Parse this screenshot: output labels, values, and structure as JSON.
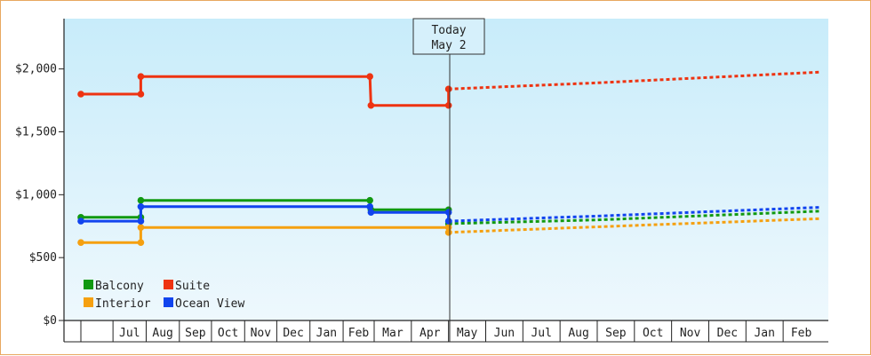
{
  "chart_data": {
    "type": "line",
    "title": "",
    "xlabel": "",
    "ylabel": "",
    "ylim": [
      0,
      2400
    ],
    "y_ticks": [
      {
        "value": 0,
        "label": "$0"
      },
      {
        "value": 500,
        "label": "$500"
      },
      {
        "value": 1000,
        "label": "$1,000"
      },
      {
        "value": 1500,
        "label": "$1,500"
      },
      {
        "value": 2000,
        "label": "$2,000"
      }
    ],
    "x_axis": {
      "start": "2023-06-01",
      "end": "2024-03-01",
      "months": [
        {
          "date": "2023-06-01",
          "label": ""
        },
        {
          "date": "2023-07-01",
          "label": "Jul"
        },
        {
          "date": "2023-08-01",
          "label": "Aug"
        },
        {
          "date": "2023-09-01",
          "label": "Sep"
        },
        {
          "date": "2023-10-01",
          "label": "Oct"
        },
        {
          "date": "2023-11-01",
          "label": "Nov"
        },
        {
          "date": "2023-12-01",
          "label": "Dec"
        },
        {
          "date": "2024-01-01",
          "label": "Jan"
        },
        {
          "date": "2024-02-01",
          "label": "Feb"
        },
        {
          "date": "2024-03-01",
          "label": "Mar"
        },
        {
          "date": "2024-04-01",
          "label": "Apr"
        },
        {
          "date": "2024-05-01",
          "label": "May"
        },
        {
          "date": "2024-06-01",
          "label": "Jun"
        },
        {
          "date": "2024-07-01",
          "label": "Jul"
        },
        {
          "date": "2024-08-01",
          "label": "Aug"
        },
        {
          "date": "2024-09-01",
          "label": "Sep"
        },
        {
          "date": "2024-10-01",
          "label": "Oct"
        },
        {
          "date": "2024-11-01",
          "label": "Nov"
        },
        {
          "date": "2024-12-01",
          "label": "Dec"
        },
        {
          "date": "2025-01-01",
          "label": "Jan"
        },
        {
          "date": "2025-02-01",
          "label": "Feb"
        }
      ]
    },
    "today": {
      "date": "2024-05-02",
      "label_line1": "Today",
      "label_line2": "May 2"
    },
    "grid": false,
    "legend_position": "bottom-left",
    "colors": {
      "background_top": "#c8ecfa",
      "background_bottom": "#eef8fd",
      "frame": "#e8a860"
    },
    "series": [
      {
        "name": "Balcony",
        "color": "#119911",
        "history": [
          {
            "date": "2023-06-01",
            "value": 820
          },
          {
            "date": "2023-07-27",
            "value": 820
          },
          {
            "date": "2023-07-27",
            "value": 955
          },
          {
            "date": "2024-02-26",
            "value": 955
          },
          {
            "date": "2024-02-27",
            "value": 880
          },
          {
            "date": "2024-05-01",
            "value": 880
          },
          {
            "date": "2024-05-01",
            "value": 770
          }
        ],
        "forecast": [
          {
            "date": "2024-05-01",
            "value": 770
          },
          {
            "date": "2024-09-01",
            "value": 800
          },
          {
            "date": "2025-03-01",
            "value": 870
          }
        ]
      },
      {
        "name": "Suite",
        "color": "#ee3311",
        "history": [
          {
            "date": "2023-06-01",
            "value": 1800
          },
          {
            "date": "2023-07-27",
            "value": 1800
          },
          {
            "date": "2023-07-27",
            "value": 1940
          },
          {
            "date": "2024-02-26",
            "value": 1940
          },
          {
            "date": "2024-02-27",
            "value": 1710
          },
          {
            "date": "2024-05-01",
            "value": 1710
          },
          {
            "date": "2024-05-01",
            "value": 1840
          }
        ],
        "forecast": [
          {
            "date": "2024-05-01",
            "value": 1840
          },
          {
            "date": "2024-09-01",
            "value": 1890
          },
          {
            "date": "2025-03-01",
            "value": 1975
          }
        ]
      },
      {
        "name": "Interior",
        "color": "#f5a010",
        "history": [
          {
            "date": "2023-06-01",
            "value": 620
          },
          {
            "date": "2023-07-27",
            "value": 620
          },
          {
            "date": "2023-07-27",
            "value": 740
          },
          {
            "date": "2024-05-01",
            "value": 740
          },
          {
            "date": "2024-05-01",
            "value": 700
          }
        ],
        "forecast": [
          {
            "date": "2024-05-01",
            "value": 700
          },
          {
            "date": "2024-09-01",
            "value": 745
          },
          {
            "date": "2025-03-01",
            "value": 810
          }
        ]
      },
      {
        "name": "Ocean View",
        "color": "#1144ee",
        "history": [
          {
            "date": "2023-06-01",
            "value": 790
          },
          {
            "date": "2023-07-27",
            "value": 790
          },
          {
            "date": "2023-07-27",
            "value": 905
          },
          {
            "date": "2024-02-26",
            "value": 905
          },
          {
            "date": "2024-02-27",
            "value": 860
          },
          {
            "date": "2024-05-01",
            "value": 860
          },
          {
            "date": "2024-05-01",
            "value": 790
          }
        ],
        "forecast": [
          {
            "date": "2024-05-01",
            "value": 790
          },
          {
            "date": "2024-09-01",
            "value": 830
          },
          {
            "date": "2025-03-01",
            "value": 900
          }
        ]
      }
    ]
  }
}
